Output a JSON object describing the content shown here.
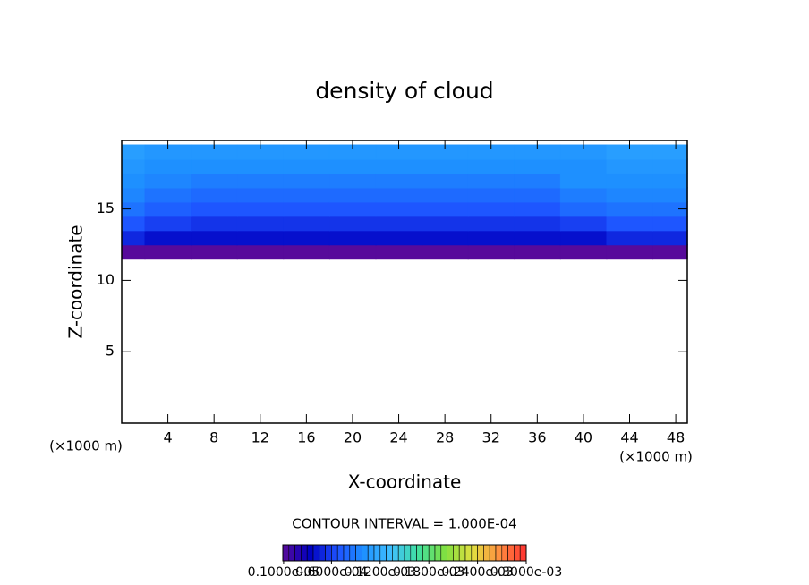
{
  "chart_data": {
    "type": "contour",
    "title": "density of cloud",
    "xlabel": "X-coordinate",
    "ylabel": "Z-coordinate",
    "xunit_left": "(×1000 m)",
    "xunit_right": "(×1000 m)",
    "contour_note": "CONTOUR INTERVAL = 1.000E-04",
    "xlim": [
      0,
      49
    ],
    "ylim": [
      0,
      19.8
    ],
    "xticks": [
      4,
      8,
      12,
      16,
      20,
      24,
      28,
      32,
      36,
      40,
      44,
      48
    ],
    "yticks": [
      5,
      10,
      15
    ],
    "x": [
      0,
      4,
      8,
      12,
      16,
      20,
      24,
      28,
      32,
      36,
      40,
      44,
      48
    ],
    "y": [
      12,
      13,
      14,
      15,
      16,
      17,
      18,
      19
    ],
    "z": [
      [
        1e-06,
        1e-06,
        1e-06,
        1e-06,
        1e-06,
        1e-06,
        1e-06,
        1e-06,
        1e-06,
        1e-06,
        1e-06,
        1e-06,
        1e-06
      ],
      [
        5e-05,
        4e-05,
        4e-05,
        4e-05,
        4e-05,
        4e-05,
        4e-05,
        4e-05,
        4e-05,
        4e-05,
        4e-05,
        5e-05,
        5e-05
      ],
      [
        7e-05,
        6e-05,
        5.5e-05,
        5.5e-05,
        5.5e-05,
        5.5e-05,
        5.5e-05,
        5.5e-05,
        5.5e-05,
        5.5e-05,
        6e-05,
        7e-05,
        7e-05
      ],
      [
        8.5e-05,
        7.5e-05,
        7e-05,
        7e-05,
        7e-05,
        7e-05,
        7e-05,
        7e-05,
        7e-05,
        7e-05,
        8e-05,
        8.5e-05,
        8.5e-05
      ],
      [
        9.5e-05,
        8.5e-05,
        8e-05,
        8e-05,
        8e-05,
        8e-05,
        8e-05,
        8e-05,
        8e-05,
        8e-05,
        9e-05,
        9.5e-05,
        9.5e-05
      ],
      [
        0.0001,
        9.5e-05,
        9e-05,
        9e-05,
        9e-05,
        9e-05,
        9e-05,
        9e-05,
        9e-05,
        9e-05,
        0.0001,
        0.0001,
        0.0001
      ],
      [
        0.000105,
        0.0001,
        0.0001,
        0.0001,
        0.0001,
        0.0001,
        0.0001,
        0.0001,
        0.0001,
        0.0001,
        0.0001,
        0.000105,
        0.000105
      ],
      [
        0.00011,
        0.000105,
        0.000105,
        0.000105,
        0.000105,
        0.000105,
        0.000105,
        0.000105,
        0.000105,
        0.000105,
        0.000105,
        0.00011,
        0.00011
      ]
    ],
    "clim": [
      0,
      0.0003
    ],
    "colormap": [
      "#5a0a9a",
      "#0000c0",
      "#1e50ff",
      "#1e90ff",
      "#40c0ff",
      "#40e0a0",
      "#80e040",
      "#e0e040",
      "#ff9040",
      "#ff3030"
    ],
    "colorbar_ticks": [
      {
        "value": 1e-06,
        "label": "0.1000e-05"
      },
      {
        "value": 6e-05,
        "label": "0.6000e-04"
      },
      {
        "value": 0.00012,
        "label": "0.1200e-03"
      },
      {
        "value": 0.00018,
        "label": "0.1800e-03"
      },
      {
        "value": 0.00024,
        "label": "0.2400e-03"
      },
      {
        "value": 0.0003,
        "label": "0.3000e-03"
      }
    ]
  }
}
